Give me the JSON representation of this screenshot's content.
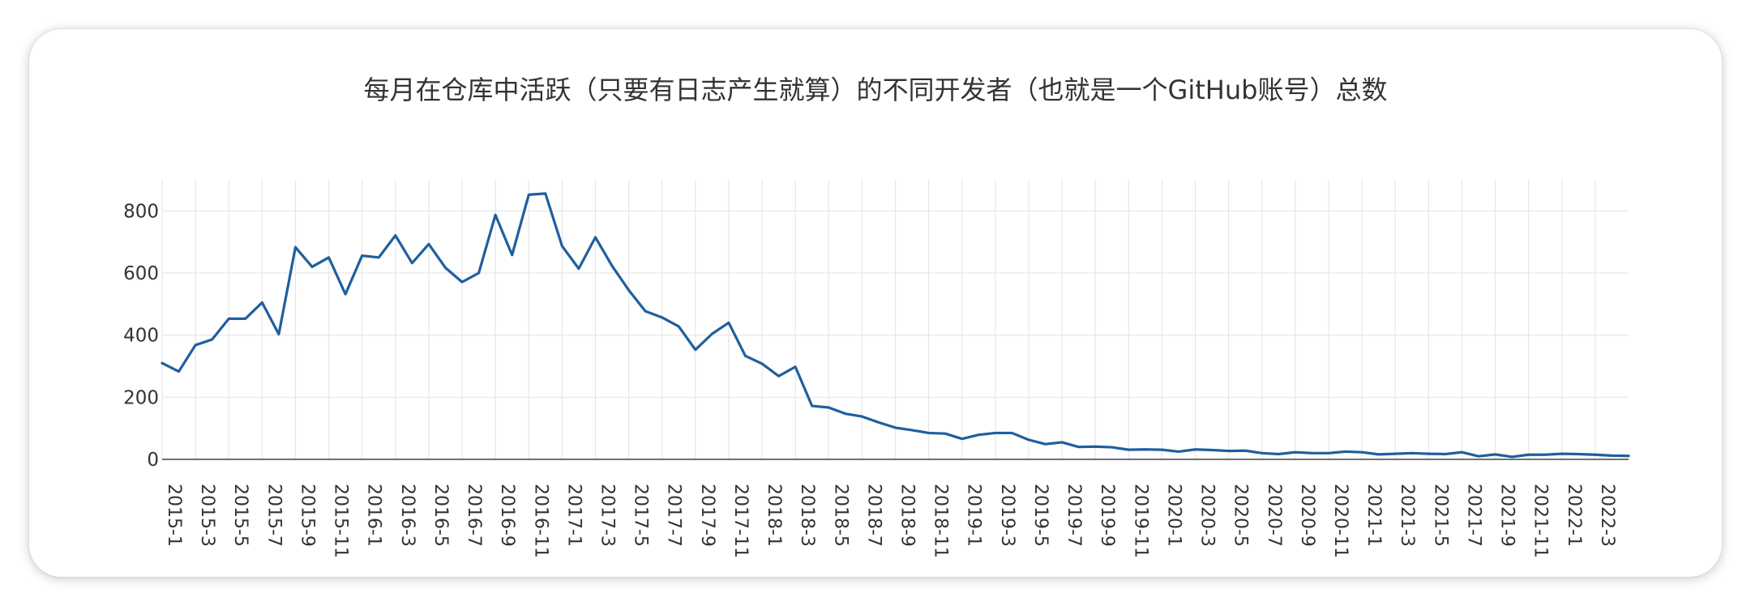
{
  "chart_data": {
    "type": "line",
    "title": "每月在仓库中活跃（只要有日志产生就算）的不同开发者（也就是一个GitHub账号）总数",
    "xlabel": "",
    "ylabel": "",
    "ylim": [
      0,
      900
    ],
    "yticks": [
      0,
      200,
      400,
      600,
      800
    ],
    "grid": true,
    "legend": "none",
    "line_color": "#1f5f9e",
    "x": [
      "2015-1",
      "2015-2",
      "2015-3",
      "2015-4",
      "2015-5",
      "2015-6",
      "2015-7",
      "2015-8",
      "2015-9",
      "2015-10",
      "2015-11",
      "2015-12",
      "2016-1",
      "2016-2",
      "2016-3",
      "2016-4",
      "2016-5",
      "2016-6",
      "2016-7",
      "2016-8",
      "2016-9",
      "2016-10",
      "2016-11",
      "2016-12",
      "2017-1",
      "2017-2",
      "2017-3",
      "2017-4",
      "2017-5",
      "2017-6",
      "2017-7",
      "2017-8",
      "2017-9",
      "2017-10",
      "2017-11",
      "2017-12",
      "2018-1",
      "2018-2",
      "2018-3",
      "2018-4",
      "2018-5",
      "2018-6",
      "2018-7",
      "2018-8",
      "2018-9",
      "2018-10",
      "2018-11",
      "2018-12",
      "2019-1",
      "2019-2",
      "2019-3",
      "2019-4",
      "2019-5",
      "2019-6",
      "2019-7",
      "2019-8",
      "2019-9",
      "2019-10",
      "2019-11",
      "2019-12",
      "2020-1",
      "2020-2",
      "2020-3",
      "2020-4",
      "2020-5",
      "2020-6",
      "2020-7",
      "2020-8",
      "2020-9",
      "2020-10",
      "2020-11",
      "2020-12",
      "2021-1",
      "2021-2",
      "2021-3",
      "2021-4",
      "2021-5",
      "2021-6",
      "2021-7",
      "2021-8",
      "2021-9",
      "2021-10",
      "2021-11",
      "2021-12",
      "2022-1",
      "2022-2",
      "2022-3",
      "2022-4",
      "2022-5"
    ],
    "xtick_labels": [
      "2015-1",
      "2015-3",
      "2015-5",
      "2015-7",
      "2015-9",
      "2015-11",
      "2016-1",
      "2016-3",
      "2016-5",
      "2016-7",
      "2016-9",
      "2016-11",
      "2017-1",
      "2017-3",
      "2017-5",
      "2017-7",
      "2017-9",
      "2017-11",
      "2018-1",
      "2018-3",
      "2018-5",
      "2018-7",
      "2018-9",
      "2018-11",
      "2019-1",
      "2019-3",
      "2019-5",
      "2019-7",
      "2019-9",
      "2019-11",
      "2020-1",
      "2020-3",
      "2020-5",
      "2020-7",
      "2020-9",
      "2020-11",
      "2021-1",
      "2021-3",
      "2021-5",
      "2021-7",
      "2021-9",
      "2021-11",
      "2022-1",
      "2022-3"
    ],
    "values": [
      310,
      283,
      368,
      386,
      453,
      453,
      505,
      403,
      683,
      620,
      650,
      532,
      656,
      650,
      721,
      632,
      693,
      617,
      571,
      600,
      787,
      658,
      852,
      856,
      687,
      614,
      715,
      623,
      545,
      477,
      457,
      428,
      353,
      404,
      440,
      333,
      308,
      268,
      298,
      172,
      167,
      147,
      138,
      119,
      102,
      94,
      85,
      83,
      66,
      79,
      85,
      85,
      63,
      49,
      55,
      40,
      41,
      39,
      31,
      32,
      31,
      25,
      32,
      30,
      27,
      28,
      20,
      17,
      23,
      20,
      20,
      25,
      23,
      16,
      18,
      20,
      18,
      17,
      23,
      10,
      16,
      8,
      15,
      15,
      18,
      17,
      15,
      12,
      11
    ]
  }
}
